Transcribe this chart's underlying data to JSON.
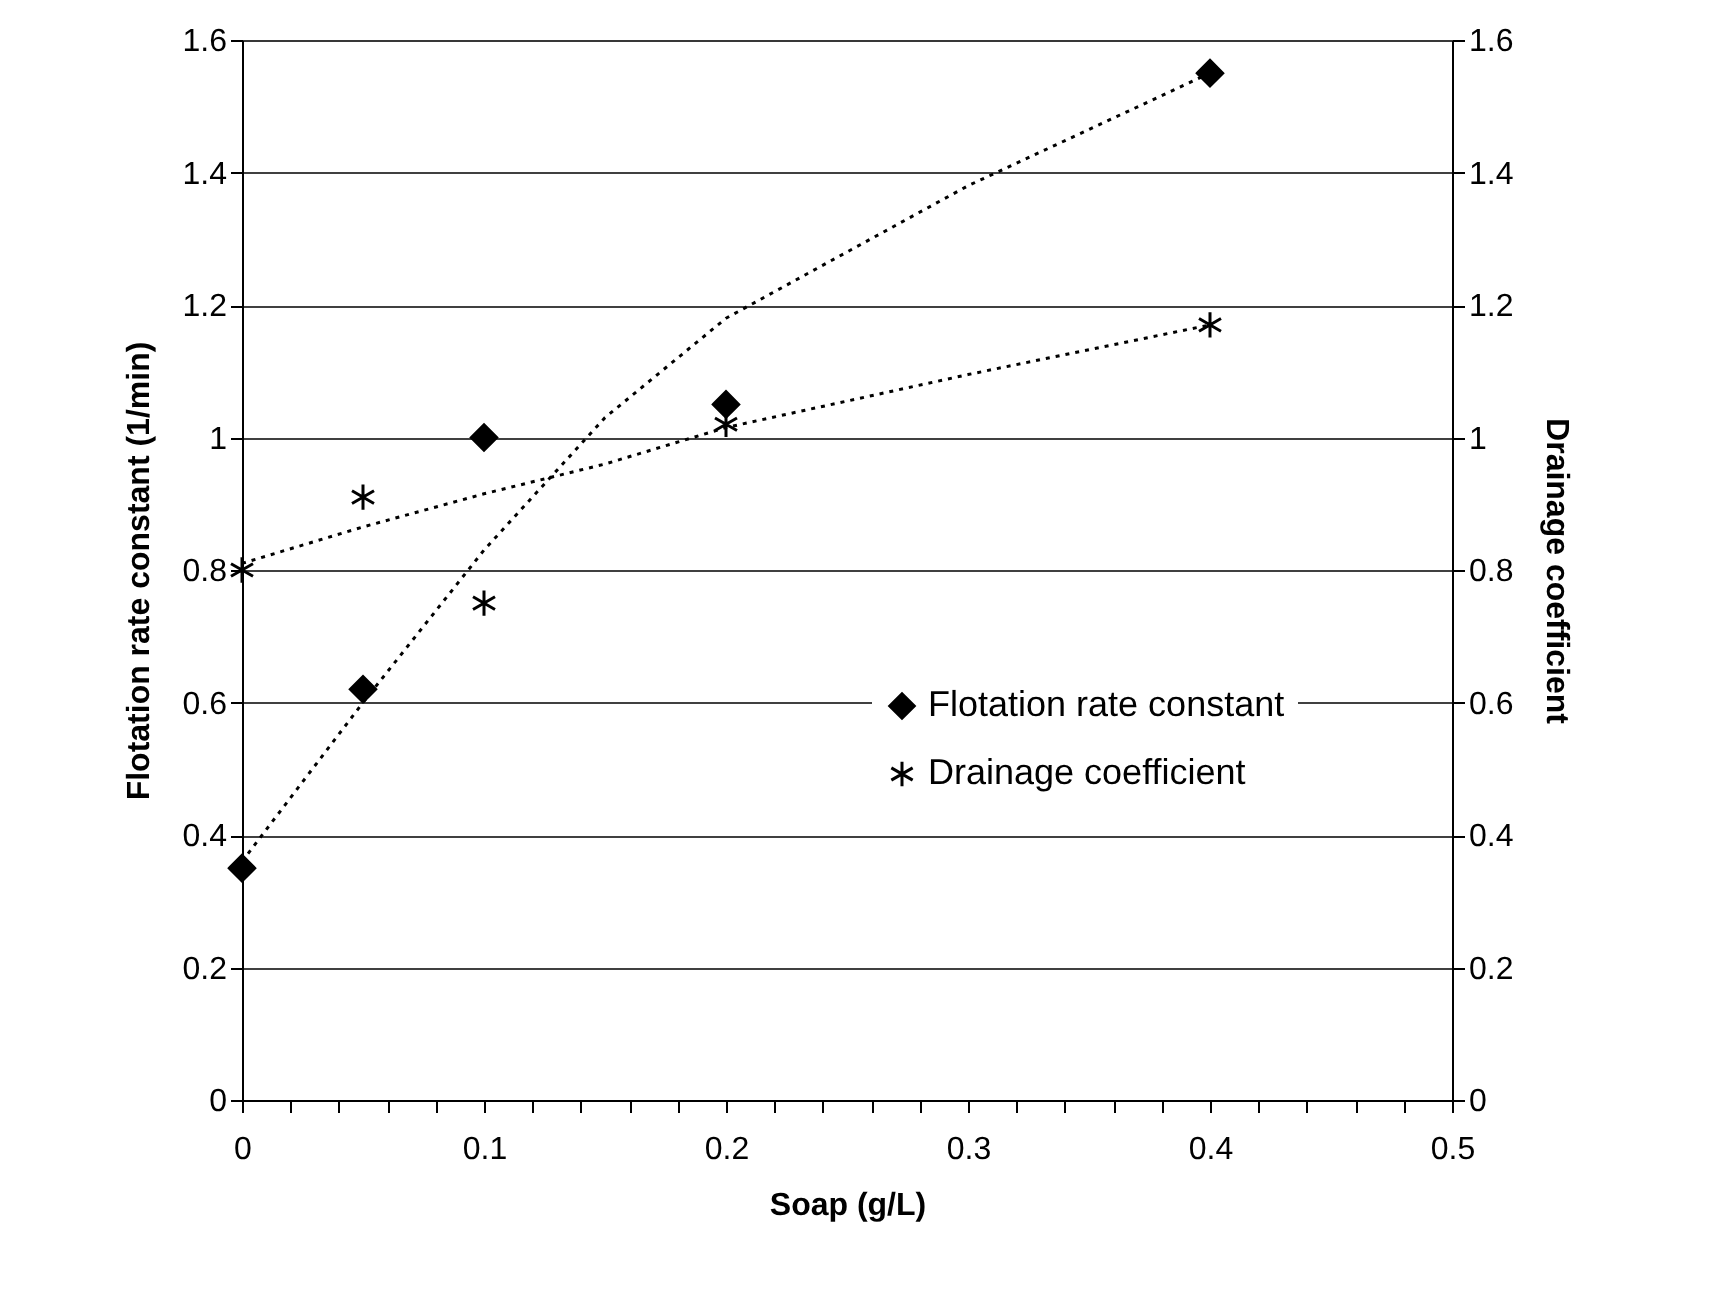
{
  "chart_data": {
    "type": "scatter",
    "xlabel": "Soap (g/L)",
    "ylabel": "Flotation rate constant (1/min)",
    "y2label": "Drainage coefficient",
    "x": [
      0,
      0.05,
      0.1,
      0.2,
      0.4
    ],
    "series": [
      {
        "name": "Flotation rate constant",
        "color": "#000000",
        "marker": "diamond",
        "values": [
          0.35,
          0.62,
          1.0,
          1.05,
          1.55
        ]
      },
      {
        "name": "Drainage coefficient",
        "color": "#000000",
        "marker": "cross",
        "axis": "y2",
        "values": [
          0.8,
          0.91,
          0.75,
          1.02,
          1.17
        ]
      },
      {
        "type": "line",
        "color": "#000000",
        "line_style": "dotted",
        "marker": "none",
        "x": [
          0,
          0.05,
          0.1,
          0.15,
          0.2,
          0.3,
          0.4
        ],
        "values": [
          0.36,
          0.6,
          0.83,
          1.03,
          1.18,
          1.38,
          1.55
        ]
      },
      {
        "type": "line",
        "color": "#000000",
        "line_style": "dotted",
        "marker": "none",
        "axis": "y2",
        "x": [
          0,
          0.05,
          0.1,
          0.15,
          0.2,
          0.3,
          0.4
        ],
        "values": [
          0.81,
          0.865,
          0.915,
          0.96,
          1.015,
          1.095,
          1.17
        ]
      }
    ],
    "xlim": [
      0,
      0.5
    ],
    "xticks": [
      0,
      {
        "value": 0.02,
        "label": null
      },
      {
        "value": 0.04,
        "label": null
      },
      {
        "value": 0.06,
        "label": null
      },
      {
        "value": 0.08,
        "label": null
      },
      0.1,
      {
        "value": 0.12,
        "label": null
      },
      {
        "value": 0.14,
        "label": null
      },
      {
        "value": 0.16,
        "label": null
      },
      {
        "value": 0.18,
        "label": null
      },
      0.2,
      {
        "value": 0.22,
        "label": null
      },
      {
        "value": 0.24,
        "label": null
      },
      {
        "value": 0.26,
        "label": null
      },
      {
        "value": 0.28,
        "label": null
      },
      0.3,
      {
        "value": 0.32,
        "label": null
      },
      {
        "value": 0.34,
        "label": null
      },
      {
        "value": 0.36,
        "label": null
      },
      {
        "value": 0.38,
        "label": null
      },
      0.4,
      {
        "value": 0.42,
        "label": null
      },
      {
        "value": 0.44,
        "label": null
      },
      {
        "value": 0.46,
        "label": null
      },
      {
        "value": 0.48,
        "label": null
      },
      0.5
    ],
    "ylim": [
      0,
      1.6
    ],
    "yticks": [
      0,
      0.2,
      0.4,
      0.6,
      0.8,
      1,
      1.2,
      1.4,
      1.6
    ],
    "y2lim": [
      0,
      1.6
    ],
    "y2ticks": [
      0,
      0.2,
      0.4,
      0.6,
      0.8,
      1,
      1.2,
      1.4,
      1.6
    ],
    "grid": "y",
    "legend": "right"
  }
}
